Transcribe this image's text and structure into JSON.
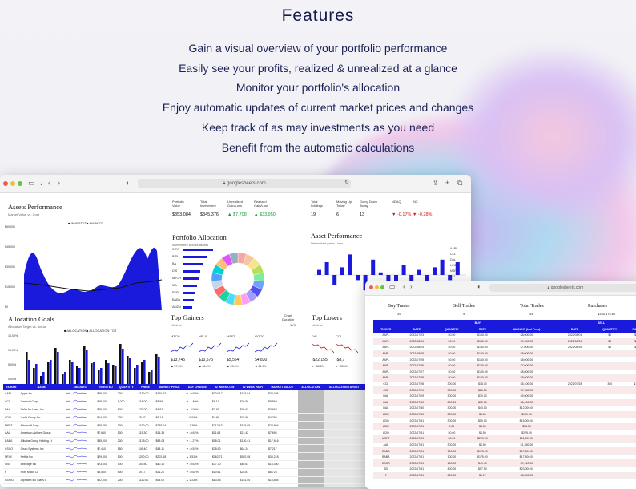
{
  "page": {
    "title": "Features",
    "features": [
      "Gain a visual overview of your portfolio performance",
      "Easily see your profits, realized & unrealized at a glance",
      "Monitor your portfolio's allocation",
      "Enjoy automatic updates of current market prices and changes",
      "Keep track of as may investments as you need",
      "Benefit from the automatic calculations"
    ]
  },
  "colors": {
    "accent": "#1a1adc",
    "positive": "#1a9b3a",
    "negative": "#d01a1a"
  },
  "browser1": {
    "url": "googlesheets.com",
    "assets_perf": {
      "title": "Assets Performance",
      "sub": "Market Value vs. Cost",
      "legend": [
        "INVESTED",
        "MARKET"
      ],
      "yticks": [
        "$60,000",
        "$45,000",
        "$30,000",
        "$15,000",
        "$0"
      ]
    },
    "stats": [
      {
        "label": "Portfolio\nValue",
        "value": "$353,084",
        "cls": ""
      },
      {
        "label": "Total\nInvestment",
        "value": "$345,376",
        "cls": ""
      },
      {
        "label": "Unrealized\nGain/Loss",
        "value": "▲ $7,708",
        "cls": "pos"
      },
      {
        "label": "Realized\nGain/Loss",
        "value": "▲ $33,950",
        "cls": "pos"
      },
      {
        "label": "Total\nholdings",
        "value": "19",
        "cls": ""
      },
      {
        "label": "Moving Up\nToday",
        "value": "6",
        "cls": ""
      },
      {
        "label": "Going Down\nToday",
        "value": "13",
        "cls": ""
      },
      {
        "label": "NDAQ",
        "value": "▼ -0.17%",
        "cls": "neg"
      },
      {
        "label": "INX",
        "value": "▼ -0.28%",
        "cls": "neg"
      }
    ],
    "portfolio_alloc": {
      "title": "Portfolio Allocation",
      "sub": "Investment across assets",
      "labels": [
        "INTC",
        "BIDU",
        "BA",
        "DIS",
        "MTCH",
        "MA",
        "PYPL",
        "BABA",
        "AMZN"
      ]
    },
    "asset_perf2": {
      "title": "Asset Performance",
      "sub": "Unrealized gains / loss",
      "labels": [
        "AAPL",
        "CCL",
        "DAL",
        "LCID",
        "MSFT",
        "AAL",
        "BABA",
        "CSCO",
        "TSLA",
        "NFLX"
      ]
    },
    "allocation_goals": {
      "title": "Allocation Goals",
      "sub": "Allocation Target vs. Actual",
      "legend": [
        "ALLOCATION",
        "ALLOCATION TGT"
      ],
      "yticks": [
        "15.00%",
        "10.00%",
        "5.00%",
        "0.00%"
      ]
    },
    "top_gainers": {
      "title": "Top Gainers",
      "sub": "Lifetime",
      "chart_btn": "Chart\nDuration",
      "chart_val": "1Y0",
      "items": [
        {
          "t": "MTCH",
          "v": "$13,745",
          "c": "▲ 57.5%"
        },
        {
          "t": "NFLX",
          "v": "$10,575",
          "c": "▲ 36.6%"
        },
        {
          "t": "MSFT",
          "v": "$5,554",
          "c": "▲ 23.6%"
        },
        {
          "t": "GOOG",
          "v": "$4,830",
          "c": "▲ 21.6%"
        }
      ]
    },
    "top_losers": {
      "title": "Top Losers",
      "sub": "Lifetime",
      "items": [
        {
          "t": "DAL",
          "v": "-$22,155",
          "c": "▼ -86.5%"
        },
        {
          "t": "CCL",
          "v": "-$8,7",
          "c": "▼ -35.4%"
        }
      ]
    },
    "table": {
      "headers": [
        "TICKER",
        "NAME",
        "180 DAYS",
        "INVESTED",
        "QUANTITY",
        "PRICE",
        "MARKET PRICE",
        "DAY CHANGE",
        "52 WEEK LOW",
        "52 WEEK HIGH",
        "MARKET VALUE",
        "ALLOCATION",
        "ALLOCATION TARGET"
      ],
      "rows": [
        [
          "AAPL",
          "Apple Inc",
          "",
          "$38,000",
          "200",
          "$150.00",
          "$150.13",
          "▼ -0.65%",
          "$124.17",
          "$182.84",
          "$30,026",
          "",
          ""
        ],
        [
          "CCL",
          "Carnival Corp",
          "",
          "$18,000",
          "1,000",
          "$18.00",
          "$8.56",
          "▼ -1.40%",
          "$6.11",
          "$26.50",
          "$8,560",
          "",
          ""
        ],
        [
          "DAL",
          "Delta Air Lines, Inc.",
          "",
          "$25,600",
          "800",
          "$32.00",
          "$4.57",
          "▼ -2.08%",
          "$3.93",
          "$36.63",
          "$3,656",
          "",
          ""
        ],
        [
          "LCID",
          "Lucid Group Inc",
          "",
          "$14,500",
          "700",
          "$5.87",
          "$6.14",
          "▲ 0.64%",
          "$4.99",
          "$28.99",
          "$4,298",
          "",
          ""
        ],
        [
          "MSFT",
          "Microsoft Corp",
          "",
          "$28,250",
          "100",
          "$150.00",
          "$238.04",
          "▲ 1.26%",
          "$213.43",
          "$315.95",
          "$23,804",
          "",
          ""
        ],
        [
          "AAL",
          "American Airlines Group",
          "",
          "$7,650",
          "500",
          "$15.30",
          "$15.39",
          "▼ -0.62%",
          "$11.65",
          "$21.42",
          "$7,695",
          "",
          ""
        ],
        [
          "BABA",
          "Alibaba Group Holding Lt",
          "",
          "$35,000",
          "200",
          "$175.00",
          "$88.08",
          "▼ -1.27%",
          "$58.01",
          "$130.41",
          "$17,616",
          "",
          ""
        ],
        [
          "CSCO",
          "Cisco Systems Inc",
          "",
          "$7,410",
          "150",
          "$49.40",
          "$48.11",
          "▼ -0.52%",
          "$38.60",
          "$64.24",
          "$7,217",
          "",
          ""
        ],
        [
          "NFLX",
          "Netflix Inc",
          "",
          "$29,000",
          "100",
          "$290.00",
          "$302.18",
          "▲ 1.51%",
          "$162.71",
          "$552.98",
          "$30,218",
          "",
          ""
        ],
        [
          "SBI",
          "Ebbridge Inc",
          "",
          "$23,000",
          "400",
          "$57.50",
          "$40.10",
          "▼ -0.63%",
          "$37.30",
          "$46.61",
          "$16,040",
          "",
          ""
        ],
        [
          "F",
          "Ford Motor Co",
          "",
          "$5,500",
          "600",
          "$9.17",
          "$11.21",
          "▼ -0.62%",
          "$10.61",
          "$25.87",
          "$6,726",
          "",
          ""
        ],
        [
          "GOOG",
          "Alphabet Inc Class C",
          "",
          "$22,000",
          "200",
          "$110.00",
          "$94.02",
          "▲ 1.23%",
          "$83.45",
          "$151.55",
          "$18,804",
          "",
          ""
        ],
        [
          "INTC",
          "Intel Corporation",
          "",
          "$13,180",
          "400",
          "$32.95",
          "$28.98",
          "▼ -0.65%",
          "$24.59",
          "$55.77",
          "$11,592",
          "",
          ""
        ],
        [
          "MA",
          "Mastercard Inc",
          "",
          "$33,500",
          "100",
          "$335.00",
          "$347.44",
          "▲ 0.85%",
          "$276.87",
          "$399.92",
          "$34,744",
          "",
          ""
        ]
      ]
    }
  },
  "browser2": {
    "url": "googlesheets.com",
    "summary": [
      {
        "label": "Buy Trades",
        "value": "35"
      },
      {
        "label": "Sell Trades",
        "value": "9"
      },
      {
        "label": "Total Trades",
        "value": "44"
      },
      {
        "label": "Purchases",
        "value": "$345,376.80"
      }
    ],
    "group_buy": "BUY",
    "group_sell": "SELL",
    "headers": [
      "TICKER",
      "DATE",
      "QUANTITY",
      "RATE",
      "AMOUNT (Incl Fees)",
      "DATE",
      "QUANTITY",
      "RATE"
    ],
    "rows": [
      [
        "AAPL",
        "2022/07/23",
        "50.00",
        "$160.00",
        "$8,000.00",
        "2022/08/01",
        "$0",
        "$0"
      ],
      [
        "AAPL",
        "2022/08/01",
        "50.00",
        "$140.00",
        "$7,000.00",
        "2022/08/24",
        "$0",
        "$0"
      ],
      [
        "AAPL",
        "2022/08/24",
        "50.00",
        "$140.00",
        "$7,000.00",
        "2022/08/28",
        "$0",
        "$0"
      ],
      [
        "AAPL",
        "2022/08/28",
        "50.00",
        "$160.00",
        "$8,000.00",
        "",
        "",
        ""
      ],
      [
        "AAPL",
        "2022/07/25",
        "50.00",
        "$160.00",
        "$8,000.00",
        "",
        "",
        ""
      ],
      [
        "AAPL",
        "2022/07/26",
        "50.00",
        "$140.00",
        "$7,000.00",
        "",
        "",
        ""
      ],
      [
        "AAPL",
        "2022/07/27",
        "50.00",
        "$160.00",
        "$8,000.00",
        "",
        "",
        ""
      ],
      [
        "AAPL",
        "2022/07/28",
        "50.00",
        "$160.00",
        "$8,000.00",
        "",
        "",
        ""
      ],
      [
        "CCL",
        "2022/07/28",
        "300.00",
        "$18.00",
        "$5,400.00",
        "2022/07/28",
        "300",
        "$16"
      ],
      [
        "CCL",
        "2022/07/29",
        "300.00",
        "$26.50",
        "$7,950.00",
        "",
        "",
        ""
      ],
      [
        "DAL",
        "2022/07/29",
        "300.00",
        "$30.00",
        "$9,000.00",
        "",
        "",
        ""
      ],
      [
        "DAL",
        "2022/07/30",
        "200.00",
        "$32.00",
        "$6,400.00",
        "",
        "",
        ""
      ],
      [
        "DAL",
        "2022/07/30",
        "300.00",
        "$40.00",
        "$12,000.00",
        "",
        "",
        ""
      ],
      [
        "LCID",
        "2022/07/30",
        "200.00",
        "$4.50",
        "$900.00",
        "",
        "",
        ""
      ],
      [
        "LCID",
        "2022/07/31",
        "300.00",
        "$50.00",
        "$15,000.00",
        "",
        "",
        ""
      ],
      [
        "LCID",
        "2022/07/31",
        "4.00",
        "$4.50",
        "$18.00",
        "",
        "",
        ""
      ],
      [
        "LCID",
        "2022/07/31",
        "50.00",
        "$4.50",
        "$225.00",
        "",
        "",
        ""
      ],
      [
        "MSFT",
        "2022/07/31",
        "50.00",
        "$220.00",
        "$11,000.00",
        "",
        "",
        ""
      ],
      [
        "AAL",
        "2022/07/31",
        "300.00",
        "$4.50",
        "$1,350.00",
        "",
        "",
        ""
      ],
      [
        "BABA",
        "2022/07/31",
        "100.00",
        "$175.00",
        "$17,500.00",
        "",
        "",
        ""
      ],
      [
        "BABA",
        "2022/07/31",
        "100.00",
        "$175.00",
        "$17,500.00",
        "",
        "",
        ""
      ],
      [
        "CSCO",
        "2022/07/31",
        "150.00",
        "$49.40",
        "$7,410.00",
        "",
        "",
        ""
      ],
      [
        "SBI",
        "2022/07/31",
        "400.00",
        "$57.50",
        "$23,000.00",
        "",
        "",
        ""
      ],
      [
        "F",
        "2022/07/31",
        "600.00",
        "$9.17",
        "$5,500.00",
        "",
        "",
        ""
      ]
    ]
  }
}
